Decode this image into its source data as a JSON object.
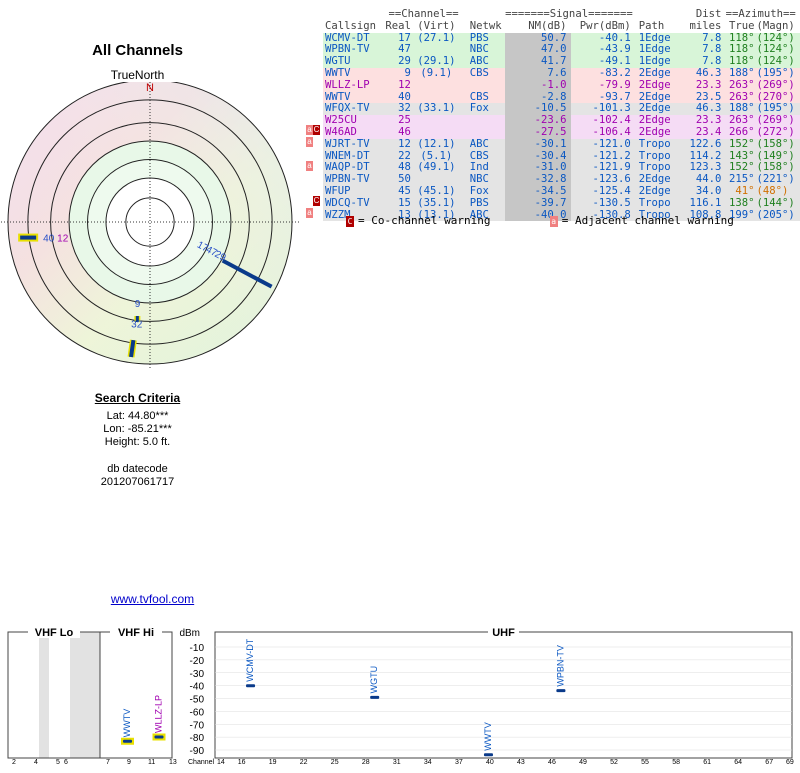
{
  "radar": {
    "title": "All Channels",
    "north_label": "TrueNorth",
    "north_mark": "N",
    "markers": [
      {
        "label": "40",
        "azimuth": 263,
        "ring": 0.97,
        "color": "#2850c8"
      },
      {
        "label": "12",
        "azimuth": 263,
        "ring": 0.97,
        "color": "#a000b0"
      },
      {
        "label": "17",
        "azimuth": 118,
        "ring": 0.35,
        "color": "#2850c8"
      },
      {
        "label": "47",
        "azimuth": 118,
        "ring": 0.42,
        "color": "#2850c8"
      },
      {
        "label": "29",
        "azimuth": 118,
        "ring": 0.49,
        "color": "#2850c8"
      },
      {
        "label": "9",
        "azimuth": 188,
        "ring": 0.62,
        "color": "#2850c8"
      },
      {
        "label": "32",
        "azimuth": 188,
        "ring": 0.72,
        "color": "#2850c8"
      }
    ]
  },
  "table": {
    "group_headers": {
      "channel": "==Channel==",
      "signal": "=======Signal=======",
      "dist": "Dist",
      "azimuth": "==Azimuth=="
    },
    "headers": {
      "callsign": "Callsign",
      "real": "Real",
      "virt": "(Virt)",
      "netwk": "Netwk",
      "nm": "NM(dB)",
      "pwr": "Pwr(dBm)",
      "path": "Path",
      "dist": "miles",
      "true": "True",
      "magn": "(Magn)"
    },
    "rows": [
      {
        "callsign": "WCMV-DT",
        "real": "17",
        "virt": "(27.1)",
        "netwk": "PBS",
        "nm": "50.7",
        "pwr": "-40.1",
        "path": "1Edge",
        "dist": "7.8",
        "true": "118°",
        "magn": "(124°)",
        "row_class": "row-green",
        "text_class": "t-blue",
        "az_class": "t-green",
        "warn": ""
      },
      {
        "callsign": "WPBN-TV",
        "real": "47",
        "virt": "",
        "netwk": "NBC",
        "nm": "47.0",
        "pwr": "-43.9",
        "path": "1Edge",
        "dist": "7.8",
        "true": "118°",
        "magn": "(124°)",
        "row_class": "row-green",
        "text_class": "t-blue",
        "az_class": "t-green",
        "warn": ""
      },
      {
        "callsign": "WGTU",
        "real": "29",
        "virt": "(29.1)",
        "netwk": "ABC",
        "nm": "41.7",
        "pwr": "-49.1",
        "path": "1Edge",
        "dist": "7.8",
        "true": "118°",
        "magn": "(124°)",
        "row_class": "row-green",
        "text_class": "t-blue",
        "az_class": "t-green",
        "warn": ""
      },
      {
        "callsign": "WWTV",
        "real": "9",
        "virt": "(9.1)",
        "netwk": "CBS",
        "nm": "7.6",
        "pwr": "-83.2",
        "path": "2Edge",
        "dist": "46.3",
        "true": "188°",
        "magn": "(195°)",
        "row_class": "row-pink",
        "text_class": "t-blue",
        "az_class": "t-blue",
        "warn": ""
      },
      {
        "callsign": "WLLZ-LP",
        "real": "12",
        "virt": "",
        "netwk": "",
        "nm": "-1.0",
        "pwr": "-79.9",
        "path": "2Edge",
        "dist": "23.3",
        "true": "263°",
        "magn": "(269°)",
        "row_class": "row-pink",
        "text_class": "t-purple",
        "az_class": "t-purple",
        "warn": ""
      },
      {
        "callsign": "WWTV",
        "real": "40",
        "virt": "",
        "netwk": "CBS",
        "nm": "-2.8",
        "pwr": "-93.7",
        "path": "2Edge",
        "dist": "23.5",
        "true": "263°",
        "magn": "(270°)",
        "row_class": "row-pink",
        "text_class": "t-blue",
        "az_class": "t-purple",
        "warn": ""
      },
      {
        "callsign": "WFQX-TV",
        "real": "32",
        "virt": "(33.1)",
        "netwk": "Fox",
        "nm": "-10.5",
        "pwr": "-101.3",
        "path": "2Edge",
        "dist": "46.3",
        "true": "188°",
        "magn": "(195°)",
        "row_class": "row-grey",
        "text_class": "t-blue",
        "az_class": "t-blue",
        "warn": ""
      },
      {
        "callsign": "W25CU",
        "real": "25",
        "virt": "",
        "netwk": "",
        "nm": "-23.6",
        "pwr": "-102.4",
        "path": "2Edge",
        "dist": "23.3",
        "true": "263°",
        "magn": "(269°)",
        "row_class": "row-purple",
        "text_class": "t-purple",
        "az_class": "t-purple",
        "warn": ""
      },
      {
        "callsign": "W46AD",
        "real": "46",
        "virt": "",
        "netwk": "",
        "nm": "-27.5",
        "pwr": "-106.4",
        "path": "2Edge",
        "dist": "23.4",
        "true": "266°",
        "magn": "(272°)",
        "row_class": "row-purple",
        "text_class": "t-purple",
        "az_class": "t-purple",
        "warn": "both"
      },
      {
        "callsign": "WJRT-TV",
        "real": "12",
        "virt": "(12.1)",
        "netwk": "ABC",
        "nm": "-30.1",
        "pwr": "-121.0",
        "path": "Tropo",
        "dist": "122.6",
        "true": "152°",
        "magn": "(158°)",
        "row_class": "row-grey",
        "text_class": "t-blue",
        "az_class": "t-green",
        "warn": "adj"
      },
      {
        "callsign": "WNEM-DT",
        "real": "22",
        "virt": "(5.1)",
        "netwk": "CBS",
        "nm": "-30.4",
        "pwr": "-121.2",
        "path": "Tropo",
        "dist": "114.2",
        "true": "143°",
        "magn": "(149°)",
        "row_class": "row-grey",
        "text_class": "t-blue",
        "az_class": "t-green",
        "warn": ""
      },
      {
        "callsign": "WAQP-DT",
        "real": "48",
        "virt": "(49.1)",
        "netwk": "Ind",
        "nm": "-31.0",
        "pwr": "-121.9",
        "path": "Tropo",
        "dist": "123.3",
        "true": "152°",
        "magn": "(158°)",
        "row_class": "row-grey",
        "text_class": "t-blue",
        "az_class": "t-green",
        "warn": "adj"
      },
      {
        "callsign": "WPBN-TV",
        "real": "50",
        "virt": "",
        "netwk": "NBC",
        "nm": "-32.8",
        "pwr": "-123.6",
        "path": "2Edge",
        "dist": "44.0",
        "true": "215°",
        "magn": "(221°)",
        "row_class": "row-grey",
        "text_class": "t-blue",
        "az_class": "t-blue",
        "warn": ""
      },
      {
        "callsign": "WFUP",
        "real": "45",
        "virt": "(45.1)",
        "netwk": "Fox",
        "nm": "-34.5",
        "pwr": "-125.4",
        "path": "2Edge",
        "dist": "34.0",
        "true": "41°",
        "magn": "(48°)",
        "row_class": "row-grey",
        "text_class": "t-blue",
        "az_class": "t-orange",
        "warn": ""
      },
      {
        "callsign": "WDCQ-TV",
        "real": "15",
        "virt": "(35.1)",
        "netwk": "PBS",
        "nm": "-39.7",
        "pwr": "-130.5",
        "path": "Tropo",
        "dist": "116.1",
        "true": "138°",
        "magn": "(144°)",
        "row_class": "row-grey",
        "text_class": "t-blue",
        "az_class": "t-green",
        "warn": "co"
      },
      {
        "callsign": "WZZM",
        "real": "13",
        "virt": "(13.1)",
        "netwk": "ABC",
        "nm": "-40.0",
        "pwr": "-130.8",
        "path": "Tropo",
        "dist": "108.8",
        "true": "199°",
        "magn": "(205°)",
        "row_class": "row-grey",
        "text_class": "t-blue",
        "az_class": "t-blue",
        "warn": "adj"
      }
    ],
    "legend": {
      "co_box": "C",
      "co_text": "= Co-channel warning",
      "adj_box": "a",
      "adj_text": "= Adjacent channel warning"
    }
  },
  "search": {
    "title": "Search Criteria",
    "lat": "Lat: 44.80***",
    "lon": "Lon: -85.21***",
    "height": "Height: 5.0 ft.",
    "datecode_label": "db datecode",
    "datecode": "201207061717"
  },
  "link": {
    "text": "www.tvfool.com"
  },
  "spectrum": {
    "bands": {
      "vhf_lo": "VHF Lo",
      "vhf_hi": "VHF Hi",
      "uhf": "UHF"
    },
    "unit_label": "dBm",
    "y_ticks": [
      "-10",
      "-20",
      "-30",
      "-40",
      "-50",
      "-60",
      "-70",
      "-80",
      "-90"
    ],
    "channel_label": "Channel",
    "vhf_lo_ticks": [
      "2",
      "4",
      "5",
      "6"
    ],
    "vhf_hi_ticks": [
      "7",
      "9",
      "11",
      "13"
    ],
    "uhf_ticks": [
      "14",
      "16",
      "19",
      "22",
      "25",
      "28",
      "31",
      "34",
      "37",
      "40",
      "43",
      "46",
      "49",
      "52",
      "55",
      "58",
      "61",
      "64",
      "67",
      "69"
    ],
    "stations": [
      {
        "label": "WWTV",
        "channel": 9,
        "dbm": -83.2,
        "color": "#0a57c2",
        "hl": true
      },
      {
        "label": "WLLZ-LP",
        "channel": 12,
        "dbm": -79.9,
        "color": "#a000b0",
        "hl": true
      },
      {
        "label": "WCMV-DT",
        "channel": 17,
        "dbm": -40.1,
        "color": "#0a57c2",
        "hl": false
      },
      {
        "label": "WGTU",
        "channel": 29,
        "dbm": -49.1,
        "color": "#0a57c2",
        "hl": false
      },
      {
        "label": "WWTV",
        "channel": 40,
        "dbm": -93.7,
        "color": "#0a57c2",
        "hl": false
      },
      {
        "label": "WPBN-TV",
        "channel": 47,
        "dbm": -43.9,
        "color": "#0a57c2",
        "hl": false
      }
    ]
  }
}
